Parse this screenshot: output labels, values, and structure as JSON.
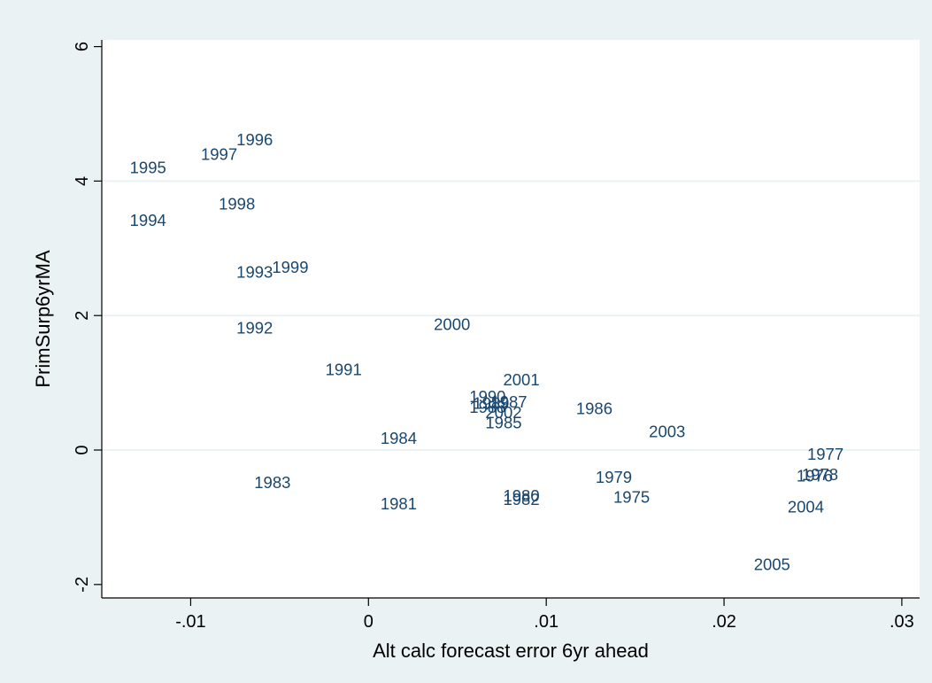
{
  "chart_data": {
    "type": "scatter",
    "title": "",
    "xlabel": "Alt calc forecast error 6yr ahead",
    "ylabel": "PrimSurp6yrMA",
    "xlim": [
      -0.015,
      0.031
    ],
    "ylim": [
      -2.2,
      6.1
    ],
    "x_ticks": [
      -0.01,
      0,
      0.01,
      0.02,
      0.03
    ],
    "x_tick_labels": [
      "-.01",
      "0",
      ".01",
      ".02",
      ".03"
    ],
    "y_ticks": [
      -2,
      0,
      2,
      4,
      6
    ],
    "y_tick_labels": [
      "-2",
      "0",
      "2",
      "4",
      "6"
    ],
    "grid": "horizontal",
    "marker": "label",
    "points": [
      {
        "label": "1975",
        "x": 0.0148,
        "y": -0.7
      },
      {
        "label": "1976",
        "x": 0.0251,
        "y": -0.38
      },
      {
        "label": "1977",
        "x": 0.0257,
        "y": -0.06
      },
      {
        "label": "1978",
        "x": 0.0254,
        "y": -0.36
      },
      {
        "label": "1979",
        "x": 0.0138,
        "y": -0.4
      },
      {
        "label": "1980",
        "x": 0.0086,
        "y": -0.68
      },
      {
        "label": "1981",
        "x": 0.0017,
        "y": -0.8
      },
      {
        "label": "1982",
        "x": 0.0086,
        "y": -0.73
      },
      {
        "label": "1983",
        "x": -0.0054,
        "y": -0.48
      },
      {
        "label": "1984",
        "x": 0.0017,
        "y": 0.18
      },
      {
        "label": "1985",
        "x": 0.0076,
        "y": 0.41
      },
      {
        "label": "1986",
        "x": 0.0127,
        "y": 0.62
      },
      {
        "label": "1987",
        "x": 0.0079,
        "y": 0.72
      },
      {
        "label": "1988",
        "x": 0.0067,
        "y": 0.64
      },
      {
        "label": "1989",
        "x": 0.0069,
        "y": 0.7
      },
      {
        "label": "1990",
        "x": 0.0067,
        "y": 0.8
      },
      {
        "label": "1991",
        "x": -0.0014,
        "y": 1.2
      },
      {
        "label": "1992",
        "x": -0.0064,
        "y": 1.82
      },
      {
        "label": "1993",
        "x": -0.0064,
        "y": 2.65
      },
      {
        "label": "1994",
        "x": -0.0124,
        "y": 3.42
      },
      {
        "label": "1995",
        "x": -0.0124,
        "y": 4.2
      },
      {
        "label": "1996",
        "x": -0.0064,
        "y": 4.62
      },
      {
        "label": "1997",
        "x": -0.0084,
        "y": 4.4
      },
      {
        "label": "1998",
        "x": -0.0074,
        "y": 3.66
      },
      {
        "label": "1999",
        "x": -0.0044,
        "y": 2.72
      },
      {
        "label": "2000",
        "x": 0.0047,
        "y": 1.87
      },
      {
        "label": "2001",
        "x": 0.0086,
        "y": 1.05
      },
      {
        "label": "2002",
        "x": 0.0076,
        "y": 0.56
      },
      {
        "label": "2003",
        "x": 0.0168,
        "y": 0.28
      },
      {
        "label": "2004",
        "x": 0.0246,
        "y": -0.84
      },
      {
        "label": "2005",
        "x": 0.0227,
        "y": -1.7
      }
    ]
  }
}
